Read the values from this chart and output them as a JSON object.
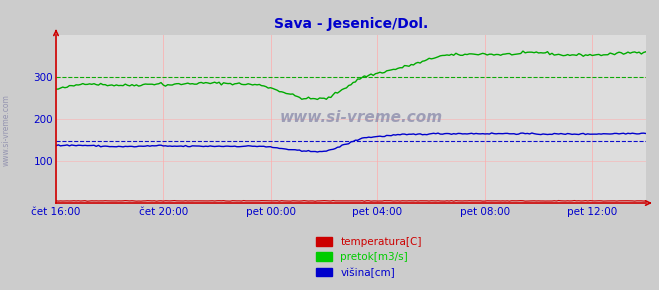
{
  "title": "Sava - Jesenice/Dol.",
  "title_color": "#0000cc",
  "bg_color": "#cccccc",
  "plot_bg_color": "#dddddd",
  "xlabel_color": "#0000cc",
  "ylabel_color": "#0000cc",
  "watermark": "www.si-vreme.com",
  "watermark_color": "#bbbbcc",
  "x_labels": [
    "čet 16:00",
    "čet 20:00",
    "pet 00:00",
    "pet 04:00",
    "pet 08:00",
    "pet 12:00"
  ],
  "x_ticks_norm": [
    0.0,
    0.182,
    0.364,
    0.545,
    0.727,
    0.909
  ],
  "ylim": [
    0,
    400
  ],
  "yticks": [
    100,
    200,
    300
  ],
  "avg_green": 300,
  "avg_blue": 148,
  "legend_labels": [
    "temperatura[C]",
    "pretok[m3/s]",
    "višina[cm]"
  ],
  "legend_colors": [
    "#cc0000",
    "#00cc00",
    "#0000cc"
  ],
  "line_color_green": "#00aa00",
  "line_color_blue": "#0000cc",
  "line_color_red": "#cc0000",
  "arrow_color": "#cc0000",
  "grid_color": "#ffaaaa"
}
